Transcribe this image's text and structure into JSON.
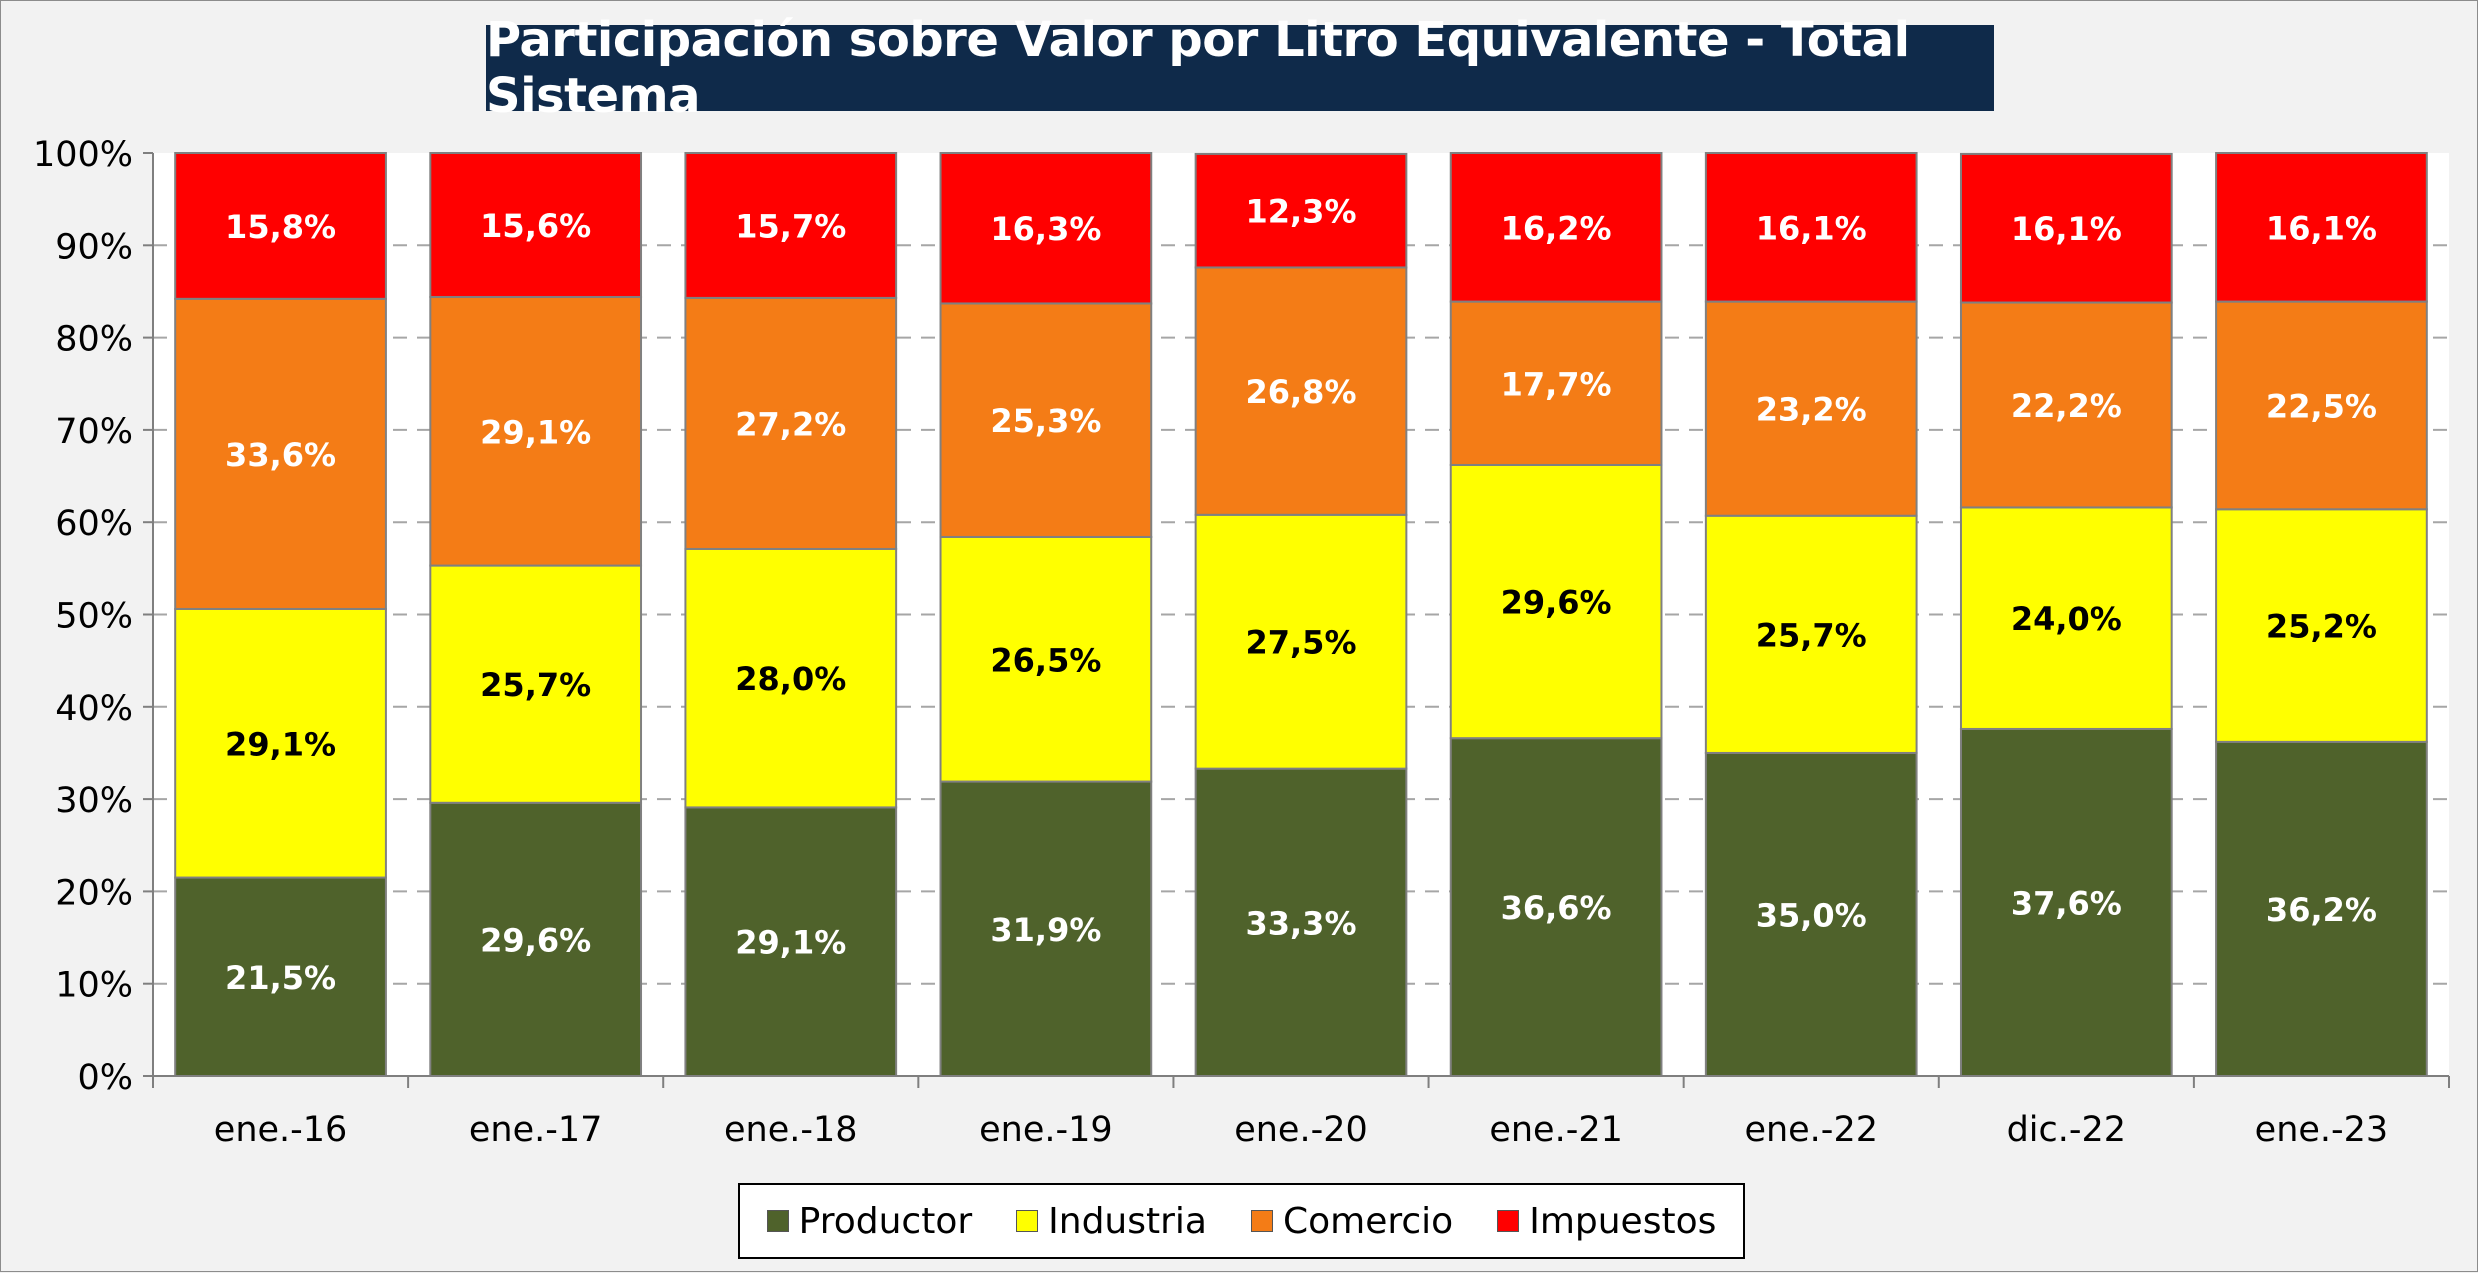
{
  "title": "Participación sobre Valor por Litro Equivalente - Total Sistema",
  "chart_data": {
    "type": "bar",
    "stacked": true,
    "title": "Participación sobre Valor por Litro Equivalente - Total Sistema",
    "xlabel": "",
    "ylabel": "",
    "ylim": [
      0,
      100
    ],
    "yticks": [
      "0%",
      "10%",
      "20%",
      "30%",
      "40%",
      "50%",
      "60%",
      "70%",
      "80%",
      "90%",
      "100%"
    ],
    "grid": true,
    "legend_position": "bottom",
    "categories": [
      "ene.-16",
      "ene.-17",
      "ene.-18",
      "ene.-19",
      "ene.-20",
      "ene.-21",
      "ene.-22",
      "dic.-22",
      "ene.-23"
    ],
    "series": [
      {
        "name": "Productor",
        "color": "#4f622b",
        "label_color": "#ffffff",
        "values": [
          21.5,
          29.6,
          29.1,
          31.9,
          33.3,
          36.6,
          35.0,
          37.6,
          36.2
        ],
        "labels": [
          "21,5%",
          "29,6%",
          "29,1%",
          "31,9%",
          "33,3%",
          "36,6%",
          "35,0%",
          "37,6%",
          "36,2%"
        ]
      },
      {
        "name": "Industria",
        "color": "#ffff00",
        "label_color": "#000000",
        "values": [
          29.1,
          25.7,
          28.0,
          26.5,
          27.5,
          29.6,
          25.7,
          24.0,
          25.2
        ],
        "labels": [
          "29,1%",
          "25,7%",
          "28,0%",
          "26,5%",
          "27,5%",
          "29,6%",
          "25,7%",
          "24,0%",
          "25,2%"
        ]
      },
      {
        "name": "Comercio",
        "color": "#f47c16",
        "label_color": "#ffffff",
        "values": [
          33.6,
          29.1,
          27.2,
          25.3,
          26.8,
          17.7,
          23.2,
          22.2,
          22.5
        ],
        "labels": [
          "33,6%",
          "29,1%",
          "27,2%",
          "25,3%",
          "26,8%",
          "17,7%",
          "23,2%",
          "22,2%",
          "22,5%"
        ]
      },
      {
        "name": "Impuestos",
        "color": "#ff0000",
        "label_color": "#ffffff",
        "values": [
          15.8,
          15.6,
          15.7,
          16.3,
          12.3,
          16.2,
          16.1,
          16.1,
          16.1
        ],
        "labels": [
          "15,8%",
          "15,6%",
          "15,7%",
          "16,3%",
          "12,3%",
          "16,2%",
          "16,1%",
          "16,1%",
          "16,1%"
        ]
      }
    ]
  }
}
